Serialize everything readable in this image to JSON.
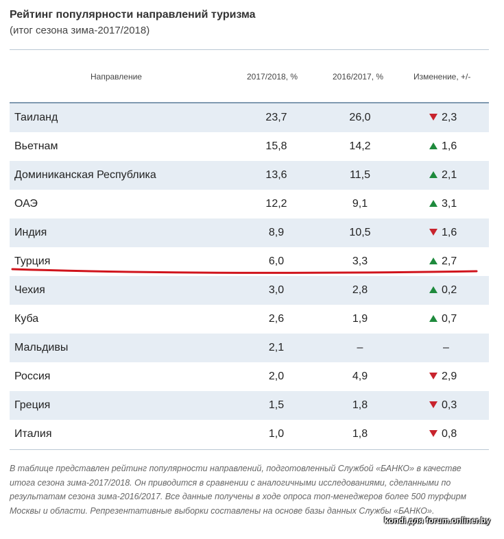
{
  "title": "Рейтинг популярности направлений туризма",
  "subtitle": "(итог сезона зима-2017/2018)",
  "columns": {
    "direction": "Направление",
    "y2018": "2017/2018, %",
    "y2017": "2016/2017, %",
    "change": "Изменение, +/-"
  },
  "rows": [
    {
      "name": "Таиланд",
      "y2018": "23,7",
      "y2017": "26,0",
      "change": "2,3",
      "trend": "down"
    },
    {
      "name": "Вьетнам",
      "y2018": "15,8",
      "y2017": "14,2",
      "change": "1,6",
      "trend": "up"
    },
    {
      "name": "Доминиканская Республика",
      "y2018": "13,6",
      "y2017": "11,5",
      "change": "2,1",
      "trend": "up"
    },
    {
      "name": "ОАЭ",
      "y2018": "12,2",
      "y2017": "9,1",
      "change": "3,1",
      "trend": "up"
    },
    {
      "name": "Индия",
      "y2018": "8,9",
      "y2017": "10,5",
      "change": "1,6",
      "trend": "down"
    },
    {
      "name": "Турция",
      "y2018": "6,0",
      "y2017": "3,3",
      "change": "2,7",
      "trend": "up"
    },
    {
      "name": "Чехия",
      "y2018": "3,0",
      "y2017": "2,8",
      "change": "0,2",
      "trend": "up"
    },
    {
      "name": "Куба",
      "y2018": "2,6",
      "y2017": "1,9",
      "change": "0,7",
      "trend": "up"
    },
    {
      "name": "Мальдивы",
      "y2018": "2,1",
      "y2017": "–",
      "change": "–",
      "trend": "none"
    },
    {
      "name": "Россия",
      "y2018": "2,0",
      "y2017": "4,9",
      "change": "2,9",
      "trend": "down"
    },
    {
      "name": "Греция",
      "y2018": "1,5",
      "y2017": "1,8",
      "change": "0,3",
      "trend": "down"
    },
    {
      "name": "Италия",
      "y2018": "1,0",
      "y2017": "1,8",
      "change": "0,8",
      "trend": "down"
    }
  ],
  "colors": {
    "down": "#c8232d",
    "up": "#1e8a3c",
    "highlight": "#d0141c"
  },
  "note": "В таблице представлен рейтинг популярности направлений, подготовленный Службой «БАНКО» в качестве итога сезона зима-2017/2018. Он приводится в сравнении с аналогичными исследованиями, сделанными по результатам сезона зима-2016/2017. Все данные получены в ходе опроса топ-менеджеров более 500 турфирм Москвы и области. Репрезентативные выборки составлены на основе базы данных Службы «БАНКО».",
  "watermark": "kondi для forum.onliner.by"
}
